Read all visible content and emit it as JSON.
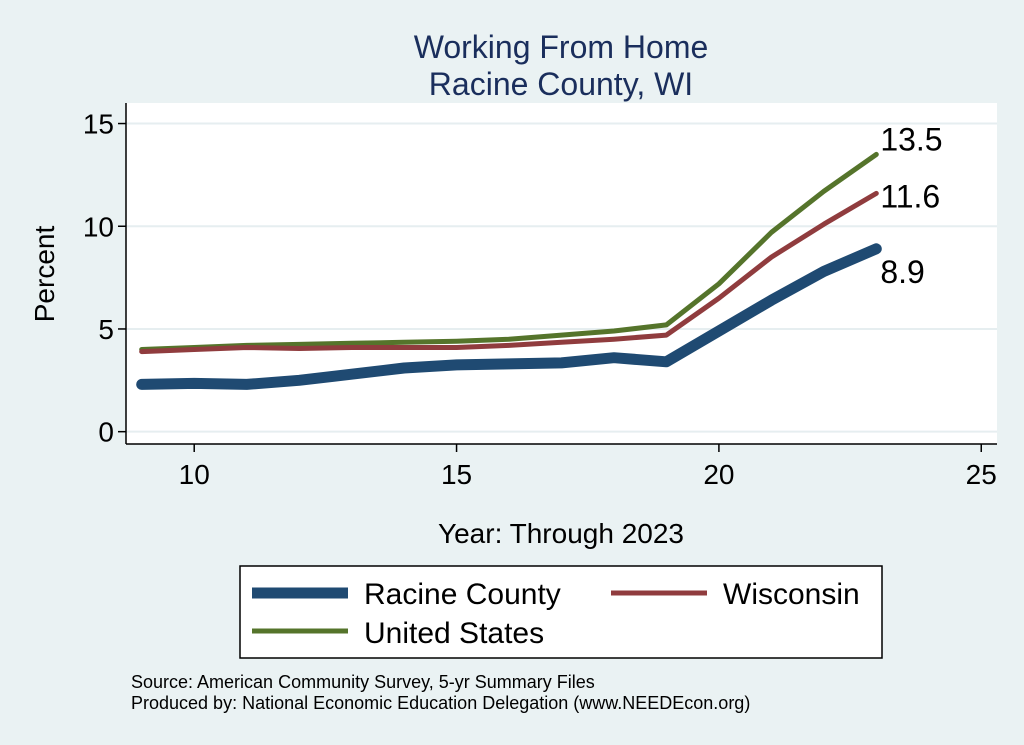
{
  "chart_data": {
    "type": "line",
    "title": [
      "Working From Home",
      "Racine County, WI"
    ],
    "xlabel": "Year: Through 2023",
    "ylabel": "Percent",
    "xlim": [
      8.7,
      25.3
    ],
    "ylim": [
      -0.6,
      16
    ],
    "xticks": [
      10,
      15,
      20,
      25
    ],
    "yticks": [
      0,
      5,
      10,
      15
    ],
    "grid": true,
    "legend_position": "bottom",
    "x": [
      9,
      10,
      11,
      12,
      13,
      14,
      15,
      16,
      17,
      18,
      19,
      20,
      21,
      22,
      23
    ],
    "series": [
      {
        "name": "Racine County",
        "color": "#1f4a72",
        "values": [
          2.3,
          2.35,
          2.3,
          2.5,
          2.8,
          3.1,
          3.25,
          3.3,
          3.35,
          3.6,
          3.4,
          4.9,
          6.4,
          7.8,
          8.9
        ]
      },
      {
        "name": "Wisconsin",
        "color": "#903c3e",
        "values": [
          3.9,
          4.0,
          4.1,
          4.05,
          4.1,
          4.1,
          4.1,
          4.2,
          4.35,
          4.5,
          4.7,
          6.5,
          8.5,
          10.1,
          11.6
        ]
      },
      {
        "name": "United States",
        "color": "#55742b",
        "values": [
          4.0,
          4.1,
          4.2,
          4.25,
          4.3,
          4.35,
          4.4,
          4.5,
          4.7,
          4.9,
          5.2,
          7.2,
          9.7,
          11.7,
          13.5
        ]
      }
    ],
    "end_labels": [
      "8.9",
      "11.6",
      "13.5"
    ],
    "notes": [
      "Source: American Community Survey, 5-yr Summary Files",
      "Produced by: National Economic Education Delegation (www.NEEDEcon.org)"
    ]
  }
}
